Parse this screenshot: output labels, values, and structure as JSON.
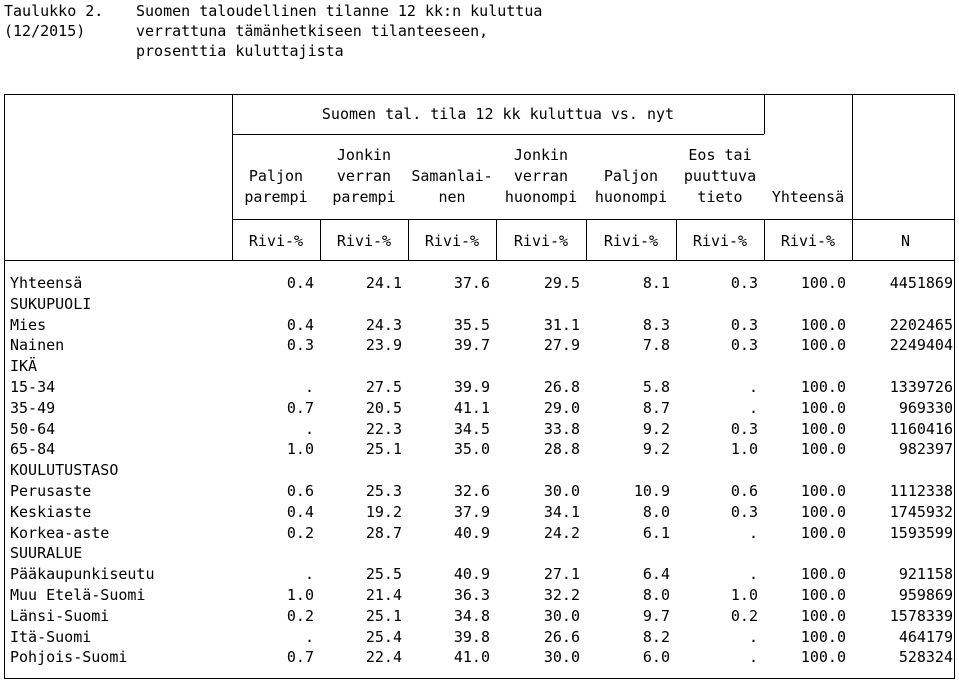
{
  "caption": {
    "label": "Taulukko 2.",
    "number": "(12/2015)",
    "lines": [
      "Suomen taloudellinen tilanne 12 kk:n kuluttua",
      "verrattuna tämänhetkiseen tilanteeseen,",
      "prosenttia kuluttajista"
    ]
  },
  "spanner": "Suomen tal. tila 12 kk kuluttua vs. nyt",
  "columns": [
    {
      "lines": [
        "",
        "Paljon",
        "parempi"
      ],
      "unit": "Rivi-%"
    },
    {
      "lines": [
        "Jonkin",
        "verran",
        "parempi"
      ],
      "unit": "Rivi-%"
    },
    {
      "lines": [
        "",
        "Samanlai-",
        "nen"
      ],
      "unit": "Rivi-%"
    },
    {
      "lines": [
        "Jonkin",
        "verran",
        "huonompi"
      ],
      "unit": "Rivi-%"
    },
    {
      "lines": [
        "",
        "Paljon",
        "huonompi"
      ],
      "unit": "Rivi-%"
    },
    {
      "lines": [
        "Eos tai",
        "puuttuva",
        "tieto"
      ],
      "unit": "Rivi-%"
    },
    {
      "lines": [
        "",
        "",
        "Yhteensä"
      ],
      "unit": "Rivi-%"
    },
    {
      "lines": [
        "",
        "",
        ""
      ],
      "unit": "N"
    }
  ],
  "rows": [
    {
      "label": "Yhteensä",
      "values": [
        "0.4",
        "24.1",
        "37.6",
        "29.5",
        "8.1",
        "0.3",
        "100.0",
        "4451869"
      ]
    },
    {
      "label": "SUKUPUOLI",
      "values": []
    },
    {
      "label": "Mies",
      "values": [
        "0.4",
        "24.3",
        "35.5",
        "31.1",
        "8.3",
        "0.3",
        "100.0",
        "2202465"
      ]
    },
    {
      "label": "Nainen",
      "values": [
        "0.3",
        "23.9",
        "39.7",
        "27.9",
        "7.8",
        "0.3",
        "100.0",
        "2249404"
      ]
    },
    {
      "label": "IKÄ",
      "values": []
    },
    {
      "label": "15-34",
      "values": [
        ".",
        "27.5",
        "39.9",
        "26.8",
        "5.8",
        ".",
        "100.0",
        "1339726"
      ]
    },
    {
      "label": "35-49",
      "values": [
        "0.7",
        "20.5",
        "41.1",
        "29.0",
        "8.7",
        ".",
        "100.0",
        "969330"
      ]
    },
    {
      "label": "50-64",
      "values": [
        ".",
        "22.3",
        "34.5",
        "33.8",
        "9.2",
        "0.3",
        "100.0",
        "1160416"
      ]
    },
    {
      "label": "65-84",
      "values": [
        "1.0",
        "25.1",
        "35.0",
        "28.8",
        "9.2",
        "1.0",
        "100.0",
        "982397"
      ]
    },
    {
      "label": "KOULUTUSTASO",
      "values": []
    },
    {
      "label": "Perusaste",
      "values": [
        "0.6",
        "25.3",
        "32.6",
        "30.0",
        "10.9",
        "0.6",
        "100.0",
        "1112338"
      ]
    },
    {
      "label": "Keskiaste",
      "values": [
        "0.4",
        "19.2",
        "37.9",
        "34.1",
        "8.0",
        "0.3",
        "100.0",
        "1745932"
      ]
    },
    {
      "label": "Korkea-aste",
      "values": [
        "0.2",
        "28.7",
        "40.9",
        "24.2",
        "6.1",
        ".",
        "100.0",
        "1593599"
      ]
    },
    {
      "label": "SUURALUE",
      "values": []
    },
    {
      "label": "Pääkaupunkiseutu",
      "values": [
        ".",
        "25.5",
        "40.9",
        "27.1",
        "6.4",
        ".",
        "100.0",
        "921158"
      ]
    },
    {
      "label": "Muu Etelä-Suomi",
      "values": [
        "1.0",
        "21.4",
        "36.3",
        "32.2",
        "8.0",
        "1.0",
        "100.0",
        "959869"
      ]
    },
    {
      "label": "Länsi-Suomi",
      "values": [
        "0.2",
        "25.1",
        "34.8",
        "30.0",
        "9.7",
        "0.2",
        "100.0",
        "1578339"
      ]
    },
    {
      "label": "Itä-Suomi",
      "values": [
        ".",
        "25.4",
        "39.8",
        "26.6",
        "8.2",
        ".",
        "100.0",
        "464179"
      ]
    },
    {
      "label": "Pohjois-Suomi",
      "values": [
        "0.7",
        "22.4",
        "41.0",
        "30.0",
        "6.0",
        ".",
        "100.0",
        "528324"
      ]
    }
  ]
}
